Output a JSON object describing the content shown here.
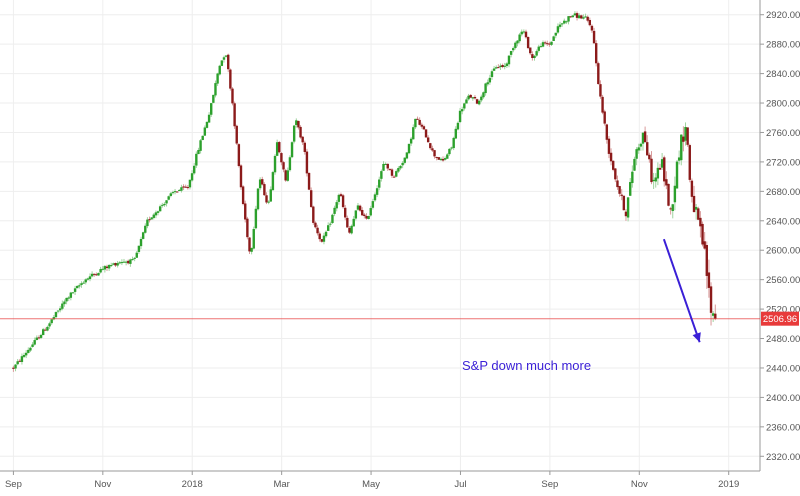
{
  "chart_data": {
    "type": "candlestick",
    "title": "",
    "xlabel": "",
    "ylabel": "",
    "ylim": [
      2300,
      2940
    ],
    "grid": true,
    "y_ticks": [
      2320,
      2360,
      2400,
      2440,
      2480,
      2520,
      2560,
      2600,
      2640,
      2680,
      2720,
      2760,
      2800,
      2840,
      2880,
      2920
    ],
    "y_tick_labels": [
      "2320.00",
      "2360.00",
      "2400.00",
      "2440.00",
      "2480.00",
      "2520.00",
      "2560.00",
      "2600.00",
      "2640.00",
      "2680.00",
      "2720.00",
      "2760.00",
      "2800.00",
      "2840.00",
      "2880.00",
      "2920.00"
    ],
    "x_tick_labels": [
      "Sep",
      "Nov",
      "2018",
      "Mar",
      "May",
      "Jul",
      "Sep",
      "Nov",
      "2019"
    ],
    "x_tick_months": [
      0,
      2,
      4,
      6,
      8,
      10,
      12,
      14,
      16
    ],
    "x_start_month": -0.3,
    "x_end_month": 16.7,
    "up_color": "#2ca02c",
    "down_color": "#8b1a1a",
    "last_price": 2506.96,
    "last_price_label": "2506.96",
    "last_price_color": "#e83a3a",
    "annotation_text": "S&P down much more",
    "annotation_color": "#3a1fd6",
    "arrow": {
      "from": {
        "month": 14.55,
        "value": 2615
      },
      "to": {
        "month": 15.35,
        "value": 2475
      }
    },
    "anchors": [
      [
        0.0,
        2440
      ],
      [
        0.4,
        2470
      ],
      [
        0.8,
        2500
      ],
      [
        1.2,
        2535
      ],
      [
        1.6,
        2560
      ],
      [
        2.0,
        2575
      ],
      [
        2.4,
        2585
      ],
      [
        2.7,
        2585
      ],
      [
        3.0,
        2640
      ],
      [
        3.3,
        2660
      ],
      [
        3.6,
        2680
      ],
      [
        3.9,
        2685
      ],
      [
        4.1,
        2730
      ],
      [
        4.4,
        2790
      ],
      [
        4.6,
        2850
      ],
      [
        4.75,
        2870
      ],
      [
        4.9,
        2800
      ],
      [
        5.1,
        2680
      ],
      [
        5.3,
        2590
      ],
      [
        5.5,
        2700
      ],
      [
        5.7,
        2660
      ],
      [
        5.9,
        2750
      ],
      [
        6.1,
        2690
      ],
      [
        6.3,
        2780
      ],
      [
        6.5,
        2740
      ],
      [
        6.7,
        2640
      ],
      [
        6.9,
        2610
      ],
      [
        7.1,
        2640
      ],
      [
        7.3,
        2680
      ],
      [
        7.5,
        2620
      ],
      [
        7.7,
        2660
      ],
      [
        7.9,
        2640
      ],
      [
        8.1,
        2680
      ],
      [
        8.3,
        2720
      ],
      [
        8.5,
        2700
      ],
      [
        8.8,
        2730
      ],
      [
        9.0,
        2780
      ],
      [
        9.2,
        2760
      ],
      [
        9.4,
        2730
      ],
      [
        9.6,
        2720
      ],
      [
        9.8,
        2740
      ],
      [
        10.0,
        2790
      ],
      [
        10.2,
        2810
      ],
      [
        10.4,
        2800
      ],
      [
        10.6,
        2830
      ],
      [
        10.8,
        2850
      ],
      [
        11.0,
        2850
      ],
      [
        11.2,
        2880
      ],
      [
        11.4,
        2900
      ],
      [
        11.6,
        2860
      ],
      [
        11.8,
        2880
      ],
      [
        12.0,
        2880
      ],
      [
        12.2,
        2905
      ],
      [
        12.5,
        2920
      ],
      [
        12.8,
        2915
      ],
      [
        12.95,
        2900
      ],
      [
        13.1,
        2820
      ],
      [
        13.3,
        2740
      ],
      [
        13.5,
        2690
      ],
      [
        13.7,
        2650
      ],
      [
        13.9,
        2730
      ],
      [
        14.1,
        2760
      ],
      [
        14.3,
        2690
      ],
      [
        14.5,
        2720
      ],
      [
        14.7,
        2650
      ],
      [
        14.9,
        2740
      ],
      [
        15.05,
        2770
      ],
      [
        15.15,
        2680
      ],
      [
        15.3,
        2640
      ],
      [
        15.45,
        2600
      ],
      [
        15.6,
        2520
      ],
      [
        15.7,
        2507
      ]
    ]
  }
}
